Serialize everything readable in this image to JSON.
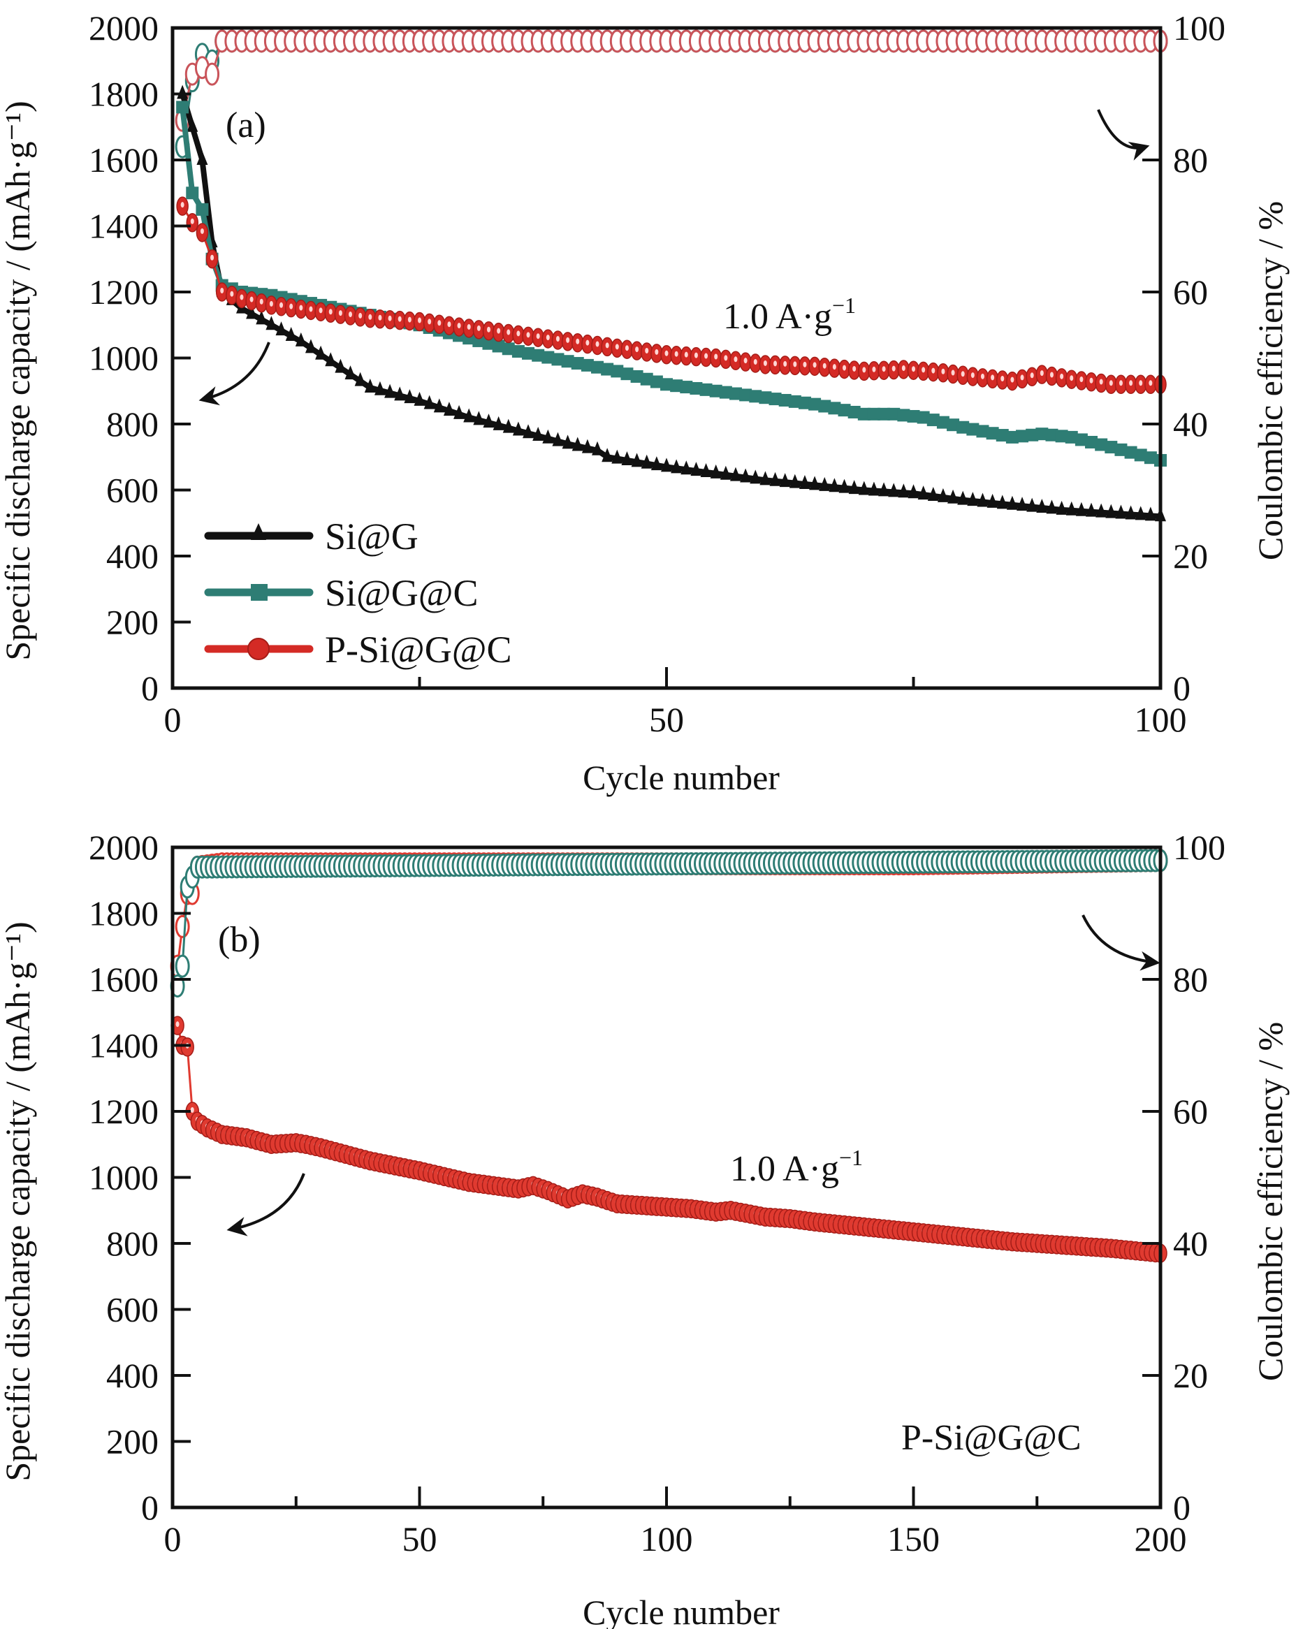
{
  "chart_data": [
    {
      "panel_label": "(a)",
      "type": "line",
      "xlabel": "Cycle number",
      "ylabel": "Specific discharge capacity / (mAh·g⁻¹)",
      "y2label": "Coulombic efficiency / %",
      "xlim": [
        0,
        100
      ],
      "ylim": [
        0,
        2000
      ],
      "y2lim": [
        0,
        100
      ],
      "xticks": [
        0,
        50,
        100
      ],
      "xminor": [
        25,
        75
      ],
      "yticks": [
        0,
        200,
        400,
        600,
        800,
        1000,
        1200,
        1400,
        1600,
        1800,
        2000
      ],
      "y2ticks": [
        0,
        20,
        40,
        60,
        80,
        100
      ],
      "annotation": "1.0 A·g",
      "annotation_sup": "−1",
      "legend_position": "bottom-left",
      "series": [
        {
          "name": "Si@G",
          "axis": "left",
          "marker": "triangle",
          "color": "#111111",
          "x": [
            1,
            2,
            3,
            4,
            5,
            7,
            10,
            13,
            16,
            20,
            25,
            30,
            35,
            40,
            43,
            44,
            50,
            55,
            60,
            65,
            70,
            75,
            80,
            85,
            90,
            95,
            100
          ],
          "y": [
            1800,
            1700,
            1600,
            1350,
            1200,
            1150,
            1100,
            1050,
            990,
            910,
            870,
            820,
            780,
            740,
            720,
            700,
            670,
            650,
            630,
            615,
            600,
            590,
            570,
            555,
            540,
            530,
            520
          ]
        },
        {
          "name": "Si@G@C",
          "axis": "left",
          "marker": "square",
          "color": "#2e7d74",
          "x": [
            1,
            2,
            3,
            4,
            5,
            7,
            10,
            15,
            20,
            25,
            30,
            35,
            40,
            45,
            50,
            55,
            60,
            65,
            70,
            73,
            76,
            80,
            85,
            88,
            91,
            95,
            100
          ],
          "y": [
            1760,
            1500,
            1450,
            1300,
            1220,
            1200,
            1190,
            1160,
            1130,
            1100,
            1060,
            1020,
            990,
            960,
            920,
            900,
            880,
            860,
            830,
            830,
            820,
            790,
            760,
            770,
            760,
            730,
            690
          ]
        },
        {
          "name": "P-Si@G@C",
          "axis": "left",
          "marker": "circle",
          "color": "#d42a25",
          "x": [
            1,
            2,
            3,
            4,
            5,
            7,
            10,
            15,
            20,
            25,
            30,
            35,
            40,
            45,
            50,
            55,
            60,
            65,
            70,
            74,
            78,
            82,
            85,
            88,
            91,
            95,
            100
          ],
          "y": [
            1460,
            1410,
            1380,
            1300,
            1200,
            1180,
            1160,
            1140,
            1120,
            1110,
            1090,
            1070,
            1050,
            1030,
            1010,
            1000,
            980,
            975,
            960,
            965,
            955,
            940,
            930,
            950,
            935,
            920,
            920
          ]
        },
        {
          "name": "Si@G@C CE",
          "axis": "right",
          "marker": "open-circle",
          "color": "#2e7d74",
          "x": [
            1,
            2,
            3,
            4,
            5,
            100
          ],
          "y": [
            82,
            92,
            96,
            95,
            98,
            98
          ]
        },
        {
          "name": "P-Si@G@C CE",
          "axis": "right",
          "marker": "open-circle",
          "color": "#c9545a",
          "x": [
            1,
            2,
            3,
            4,
            5,
            10,
            50,
            100
          ],
          "y": [
            86,
            93,
            94,
            93,
            98,
            98,
            98,
            98
          ]
        }
      ]
    },
    {
      "panel_label": "(b)",
      "type": "line",
      "xlabel": "Cycle number",
      "ylabel": "Specific discharge capacity / (mAh·g⁻¹)",
      "y2label": "Coulombic efficiency / %",
      "xlim": [
        0,
        200
      ],
      "ylim": [
        0,
        2000
      ],
      "y2lim": [
        0,
        100
      ],
      "xticks": [
        0,
        50,
        100,
        150,
        200
      ],
      "xminor": [
        25,
        75,
        125,
        175
      ],
      "yticks": [
        0,
        200,
        400,
        600,
        800,
        1000,
        1200,
        1400,
        1600,
        1800,
        2000
      ],
      "y2ticks": [
        0,
        20,
        40,
        60,
        80,
        100
      ],
      "annotation": "1.0 A·g",
      "annotation_sup": "−1",
      "sample_label": "P-Si@G@C",
      "series": [
        {
          "name": "P-Si@G@C",
          "axis": "left",
          "marker": "circle",
          "color": "#e03a30",
          "x": [
            1,
            2,
            3,
            4,
            5,
            7,
            10,
            15,
            20,
            25,
            27,
            30,
            40,
            50,
            60,
            70,
            73,
            76,
            80,
            83,
            86,
            90,
            100,
            105,
            110,
            113,
            120,
            125,
            130,
            140,
            150,
            160,
            170,
            180,
            190,
            200
          ],
          "y": [
            1460,
            1400,
            1395,
            1200,
            1170,
            1150,
            1130,
            1120,
            1100,
            1105,
            1100,
            1090,
            1050,
            1020,
            985,
            965,
            975,
            960,
            935,
            950,
            940,
            920,
            910,
            905,
            895,
            900,
            880,
            875,
            865,
            850,
            835,
            820,
            805,
            795,
            785,
            770
          ]
        },
        {
          "name": "P-Si@G@C CE",
          "axis": "right",
          "marker": "open-circle",
          "color": "#e03a30",
          "x": [
            1,
            2,
            3,
            4,
            5,
            10,
            50,
            100,
            150,
            200
          ],
          "y": [
            82,
            88,
            93,
            93,
            97,
            97.5,
            97.5,
            97.5,
            97.5,
            98
          ]
        },
        {
          "name": "Si@G@C CE",
          "axis": "right",
          "marker": "open-circle",
          "color": "#2e7d74",
          "x": [
            1,
            2,
            3,
            5,
            200
          ],
          "y": [
            79,
            82,
            94,
            97,
            98
          ]
        }
      ]
    }
  ]
}
